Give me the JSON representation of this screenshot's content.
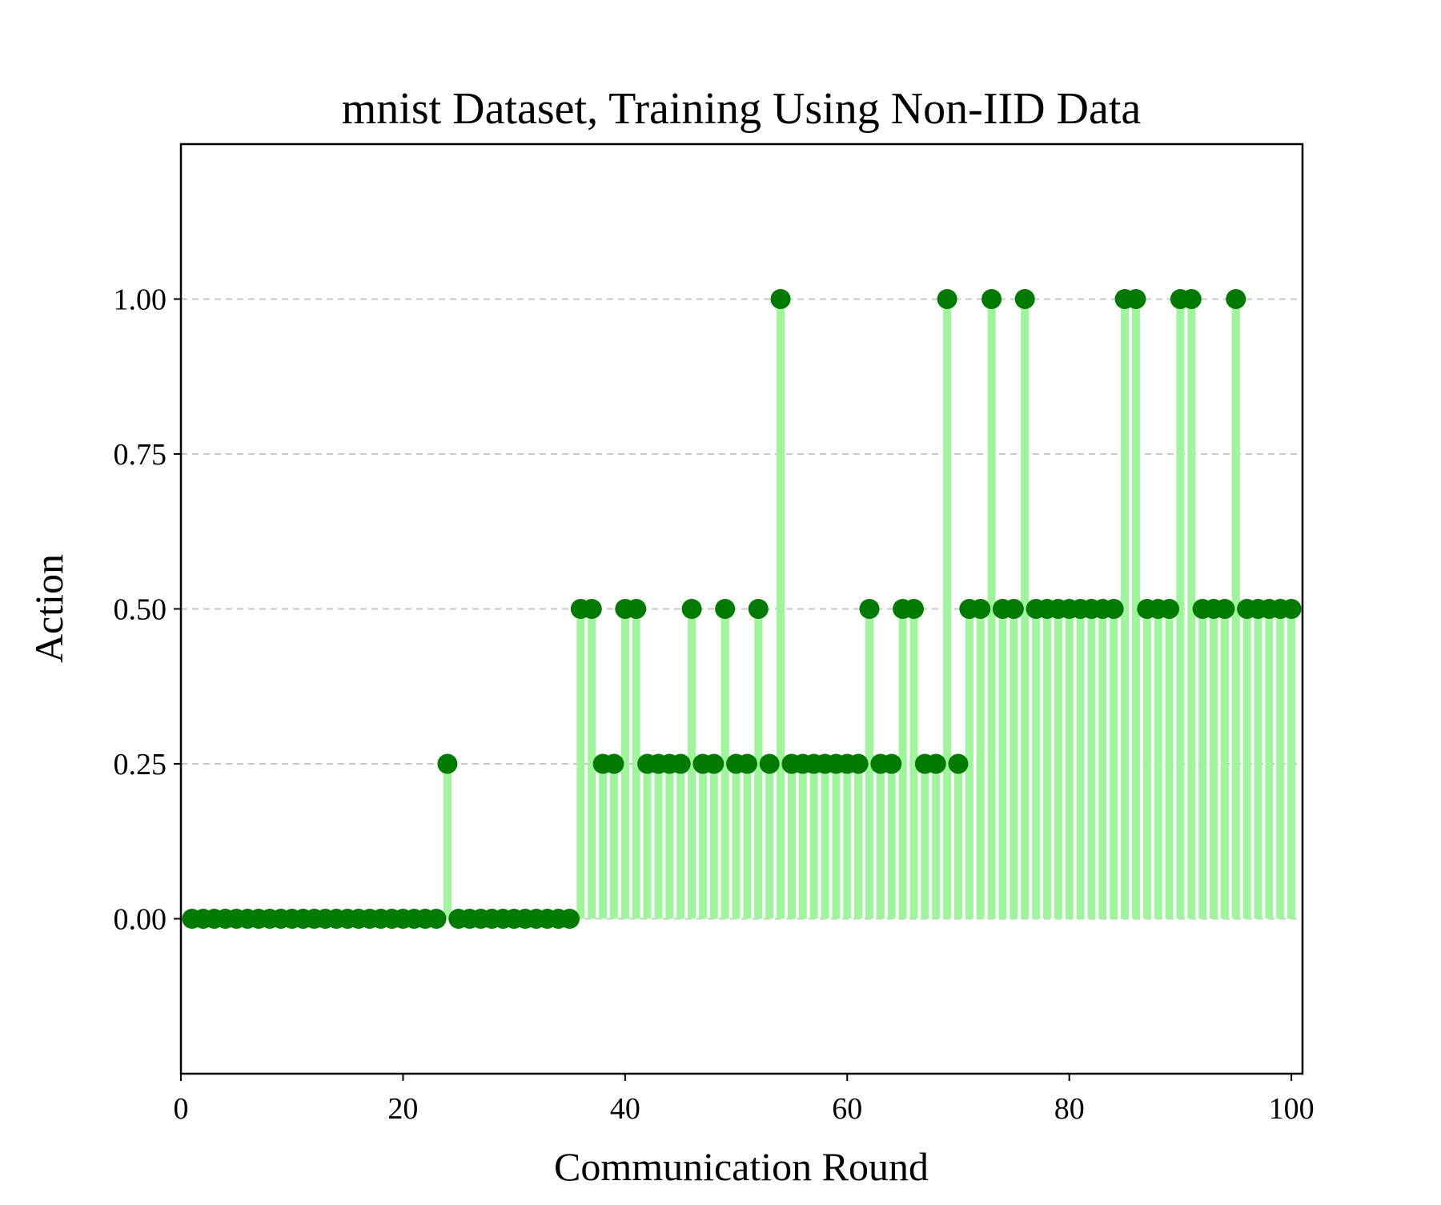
{
  "chart_data": {
    "type": "stem",
    "title": "mnist Dataset, Training Using Non-IID Data",
    "xlabel": "Communication Round",
    "ylabel": "Action",
    "xlim": [
      0,
      101
    ],
    "ylim": [
      -0.25,
      1.25
    ],
    "xticks": [
      0,
      20,
      40,
      60,
      80,
      100
    ],
    "xtick_labels": [
      "0",
      "20",
      "40",
      "60",
      "80",
      "100"
    ],
    "yticks": [
      0.0,
      0.25,
      0.5,
      0.75,
      1.0
    ],
    "ytick_labels": [
      "0.00",
      "0.25",
      "0.50",
      "0.75",
      "1.00"
    ],
    "grid": "y-dashed",
    "legend": "none",
    "colors": {
      "stem": "#9ff59b",
      "marker": "#007a00",
      "grid": "#c8c8c8"
    },
    "x": [
      1,
      2,
      3,
      4,
      5,
      6,
      7,
      8,
      9,
      10,
      11,
      12,
      13,
      14,
      15,
      16,
      17,
      18,
      19,
      20,
      21,
      22,
      23,
      24,
      25,
      26,
      27,
      28,
      29,
      30,
      31,
      32,
      33,
      34,
      35,
      36,
      37,
      38,
      39,
      40,
      41,
      42,
      43,
      44,
      45,
      46,
      47,
      48,
      49,
      50,
      51,
      52,
      53,
      54,
      55,
      56,
      57,
      58,
      59,
      60,
      61,
      62,
      63,
      64,
      65,
      66,
      67,
      68,
      69,
      70,
      71,
      72,
      73,
      74,
      75,
      76,
      77,
      78,
      79,
      80,
      81,
      82,
      83,
      84,
      85,
      86,
      87,
      88,
      89,
      90,
      91,
      92,
      93,
      94,
      95,
      96,
      97,
      98,
      99,
      100
    ],
    "y": [
      0,
      0,
      0,
      0,
      0,
      0,
      0,
      0,
      0,
      0,
      0,
      0,
      0,
      0,
      0,
      0,
      0,
      0,
      0,
      0,
      0,
      0,
      0,
      0.25,
      0,
      0,
      0,
      0,
      0,
      0,
      0,
      0,
      0,
      0,
      0,
      0.5,
      0.5,
      0.25,
      0.25,
      0.5,
      0.5,
      0.25,
      0.25,
      0.25,
      0.25,
      0.5,
      0.25,
      0.25,
      0.5,
      0.25,
      0.25,
      0.5,
      0.25,
      1.0,
      0.25,
      0.25,
      0.25,
      0.25,
      0.25,
      0.25,
      0.25,
      0.5,
      0.25,
      0.25,
      0.5,
      0.5,
      0.25,
      0.25,
      1.0,
      0.25,
      0.5,
      0.5,
      1.0,
      0.5,
      0.5,
      1.0,
      0.5,
      0.5,
      0.5,
      0.5,
      0.5,
      0.5,
      0.5,
      0.5,
      1.0,
      1.0,
      0.5,
      0.5,
      0.5,
      1.0,
      1.0,
      0.5,
      0.5,
      0.5,
      1.0,
      0.5,
      0.5,
      0.5,
      0.5,
      0.5
    ]
  }
}
